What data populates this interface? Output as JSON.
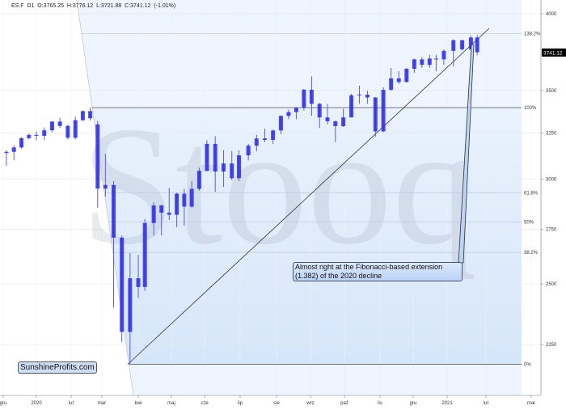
{
  "header": {
    "symbol": "ES.F",
    "interval": "D1",
    "open": "O:3765.25",
    "high": "H:3776.12",
    "low": "L:3721.88",
    "close": "C:3741.12",
    "change": "(-1.01%)"
  },
  "annotation": {
    "line1": "Almost right at the Fibonacci-based extension",
    "line2": "(1.382) of the 2020 decline"
  },
  "logo": "SunshineProfits.com",
  "watermark": "Stooq",
  "last_price_label": "3741.12",
  "colors": {
    "bars": "#2a2af0",
    "fib_fill": "#dce9fb",
    "last_price_bg": "#000000"
  },
  "chart_data": {
    "type": "ohlc",
    "scale": "log",
    "ylim": [
      2100,
      4100
    ],
    "grid": true,
    "y_ticks": [
      4000,
      3500,
      3250,
      3000,
      2750,
      2500,
      2250
    ],
    "x_ticks": [
      "gru",
      "2020",
      "lut",
      "mar",
      "kwi",
      "maj",
      "cze",
      "lip",
      "sie",
      "wrz",
      "paź",
      "lis",
      "gru",
      "2021",
      "lut",
      "mar"
    ],
    "fib_levels": [
      {
        "label": "138.2%",
        "value": 3864
      },
      {
        "label": "100%",
        "value": 3397
      },
      {
        "label": "61.8%",
        "value": 2930
      },
      {
        "label": "50%",
        "value": 2785.5
      },
      {
        "label": "38.2%",
        "value": 2641
      },
      {
        "label": "0%",
        "value": 2174
      }
    ],
    "trendline": {
      "from": [
        "2020-03-23",
        2174
      ],
      "to": [
        "2021-02-03",
        3900
      ]
    },
    "bars": [
      [
        "2019-12-06",
        3140,
        3155,
        3070,
        3146
      ],
      [
        "2019-12-13",
        3146,
        3182,
        3100,
        3170
      ],
      [
        "2019-12-20",
        3170,
        3226,
        3165,
        3222
      ],
      [
        "2019-12-27",
        3222,
        3247,
        3215,
        3240
      ],
      [
        "2020-01-03",
        3240,
        3260,
        3210,
        3235
      ],
      [
        "2020-01-10",
        3235,
        3282,
        3212,
        3266
      ],
      [
        "2020-01-17",
        3266,
        3318,
        3255,
        3316
      ],
      [
        "2020-01-24",
        3316,
        3337,
        3280,
        3291
      ],
      [
        "2020-01-31",
        3291,
        3298,
        3215,
        3224
      ],
      [
        "2020-02-07",
        3224,
        3345,
        3215,
        3324
      ],
      [
        "2020-02-14",
        3324,
        3380,
        3320,
        3377
      ],
      [
        "2020-02-21",
        3377,
        3397,
        3322,
        3335
      ],
      [
        "2020-02-28",
        3300,
        3320,
        2855,
        2951
      ],
      [
        "2020-03-06",
        2951,
        3136,
        2910,
        2970
      ],
      [
        "2020-03-13",
        2970,
        2990,
        2400,
        2710
      ],
      [
        "2020-03-20",
        2710,
        2720,
        2260,
        2300
      ],
      [
        "2020-03-27",
        2300,
        2638,
        2174,
        2525
      ],
      [
        "2020-04-03",
        2525,
        2631,
        2440,
        2487
      ],
      [
        "2020-04-09",
        2487,
        2800,
        2470,
        2780
      ],
      [
        "2020-04-17",
        2780,
        2880,
        2720,
        2866
      ],
      [
        "2020-04-24",
        2866,
        2870,
        2720,
        2830
      ],
      [
        "2020-05-01",
        2830,
        2955,
        2795,
        2820
      ],
      [
        "2020-05-08",
        2820,
        2930,
        2760,
        2925
      ],
      [
        "2020-05-15",
        2925,
        2950,
        2765,
        2860
      ],
      [
        "2020-05-22",
        2860,
        2990,
        2855,
        2950
      ],
      [
        "2020-05-29",
        2950,
        3060,
        2940,
        3044
      ],
      [
        "2020-06-05",
        3044,
        3210,
        3040,
        3190
      ],
      [
        "2020-06-12",
        3190,
        3233,
        2935,
        3040
      ],
      [
        "2020-06-19",
        3040,
        3155,
        2960,
        3083
      ],
      [
        "2020-06-26",
        3083,
        3150,
        2995,
        3005
      ],
      [
        "2020-07-02",
        3005,
        3155,
        2990,
        3127
      ],
      [
        "2020-07-10",
        3127,
        3190,
        3100,
        3180
      ],
      [
        "2020-07-17",
        3180,
        3240,
        3150,
        3220
      ],
      [
        "2020-07-24",
        3220,
        3275,
        3200,
        3212
      ],
      [
        "2020-07-31",
        3212,
        3270,
        3190,
        3265
      ],
      [
        "2020-08-07",
        3265,
        3350,
        3245,
        3349
      ],
      [
        "2020-08-14",
        3349,
        3385,
        3330,
        3371
      ],
      [
        "2020-08-21",
        3371,
        3400,
        3330,
        3396
      ],
      [
        "2020-08-28",
        3396,
        3510,
        3380,
        3505
      ],
      [
        "2020-09-04",
        3505,
        3588,
        3350,
        3420
      ],
      [
        "2020-09-11",
        3420,
        3425,
        3280,
        3340
      ],
      [
        "2020-09-18",
        3340,
        3420,
        3300,
        3318
      ],
      [
        "2020-09-25",
        3318,
        3320,
        3200,
        3290
      ],
      [
        "2020-10-02",
        3290,
        3390,
        3285,
        3340
      ],
      [
        "2020-10-09",
        3340,
        3480,
        3340,
        3471
      ],
      [
        "2020-10-16",
        3471,
        3530,
        3420,
        3475
      ],
      [
        "2020-10-23",
        3475,
        3500,
        3420,
        3458
      ],
      [
        "2020-10-30",
        3458,
        3460,
        3230,
        3260
      ],
      [
        "2020-11-06",
        3260,
        3520,
        3255,
        3504
      ],
      [
        "2020-11-13",
        3504,
        3640,
        3500,
        3575
      ],
      [
        "2020-11-20",
        3575,
        3620,
        3540,
        3552
      ],
      [
        "2020-11-27",
        3552,
        3640,
        3550,
        3635
      ],
      [
        "2020-12-04",
        3635,
        3700,
        3610,
        3695
      ],
      [
        "2020-12-11",
        3695,
        3710,
        3640,
        3660
      ],
      [
        "2020-12-18",
        3660,
        3725,
        3640,
        3700
      ],
      [
        "2020-12-24",
        3700,
        3725,
        3620,
        3695
      ],
      [
        "2020-12-31",
        3695,
        3760,
        3660,
        3750
      ],
      [
        "2021-01-08",
        3750,
        3826,
        3650,
        3820
      ],
      [
        "2021-01-15",
        3820,
        3823,
        3750,
        3760
      ],
      [
        "2021-01-22",
        3760,
        3850,
        3750,
        3838
      ],
      [
        "2021-01-27",
        3838,
        3855,
        3721.88,
        3741.12
      ]
    ]
  }
}
